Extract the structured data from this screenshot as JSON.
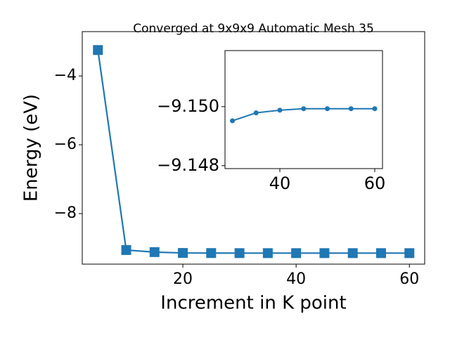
{
  "chart_data": [
    {
      "type": "line",
      "title": "Converged at 9x9x9 Automatic Mesh 35",
      "x_label": "Increment in K point",
      "y_label": "Energy (eV)",
      "x": [
        5,
        10,
        15,
        20,
        25,
        30,
        35,
        40,
        45,
        50,
        55,
        60
      ],
      "series": [
        {
          "color": "#1f77b4",
          "marker": "square",
          "values": [
            -3.245,
            -9.06,
            -9.12,
            -9.145,
            -9.148,
            -9.14952,
            -9.14979,
            -9.14988,
            -9.14993,
            -9.14993,
            -9.14993,
            -9.14993
          ]
        }
      ],
      "xlim": [
        2.24,
        62.7
      ],
      "ylim": [
        -9.47,
        -2.71
      ],
      "xticks": [
        20,
        40,
        60
      ],
      "yticks": [
        {
          "value": -4,
          "label": "−4"
        },
        {
          "value": -6,
          "label": "−6"
        },
        {
          "value": -8,
          "label": "−8"
        }
      ]
    },
    {
      "type": "line",
      "x": [
        30,
        35,
        40,
        45,
        50,
        55,
        60
      ],
      "series": [
        {
          "color": "#1f77b4",
          "marker": "circle",
          "values": [
            -9.14952,
            -9.14979,
            -9.14988,
            -9.14993,
            -9.14993,
            -9.14993,
            -9.14993
          ]
        }
      ],
      "xlim": [
        28.44,
        61.63
      ],
      "ylim": [
        -9.1479,
        -9.1519
      ],
      "xticks": [
        40,
        60
      ],
      "yticks": [
        {
          "value": -9.15,
          "label": "−9.150"
        },
        {
          "value": -9.148,
          "label": "−9.148"
        }
      ]
    }
  ]
}
